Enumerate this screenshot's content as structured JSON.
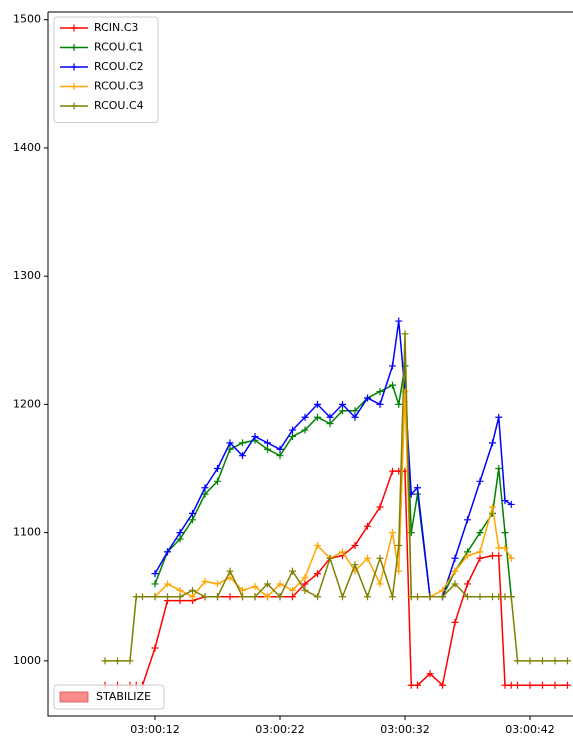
{
  "chart_data": {
    "type": "line",
    "x": [
      8,
      9,
      10,
      10.5,
      11,
      12,
      13,
      14,
      15,
      16,
      17,
      18,
      19,
      20,
      21,
      22,
      23,
      24,
      25,
      26,
      27,
      28,
      29,
      30,
      31,
      31.5,
      32,
      32.5,
      33,
      34,
      35,
      36,
      37,
      38,
      39,
      39.5,
      40,
      40.5,
      41,
      42,
      43,
      44,
      45
    ],
    "series": [
      {
        "name": "RCIN.C3",
        "color": "#ff0000",
        "values": [
          981,
          981,
          981,
          981,
          981,
          1010,
          1047,
          1047,
          1047,
          1050,
          1050,
          1050,
          1050,
          1050,
          1050,
          1050,
          1050,
          1060,
          1068,
          1080,
          1082,
          1090,
          1105,
          1120,
          1148,
          1148,
          1148,
          981,
          981,
          990,
          981,
          1030,
          1060,
          1080,
          1082,
          1082,
          981,
          981,
          981,
          981,
          981,
          981,
          981
        ]
      },
      {
        "name": "RCOU.C1",
        "color": "#008000",
        "values": [
          null,
          null,
          null,
          null,
          null,
          1060,
          1085,
          1095,
          1110,
          1130,
          1140,
          1165,
          1170,
          1172,
          1165,
          1160,
          1175,
          1180,
          1190,
          1185,
          1195,
          1195,
          1205,
          1210,
          1215,
          1200,
          1230,
          1100,
          1130,
          1050,
          1050,
          1070,
          1085,
          1100,
          1115,
          1150,
          1100,
          1050,
          null,
          null,
          null,
          null,
          null
        ]
      },
      {
        "name": "RCOU.C2",
        "color": "#0000ff",
        "values": [
          null,
          null,
          null,
          null,
          null,
          1068,
          1085,
          1100,
          1115,
          1135,
          1150,
          1170,
          1160,
          1175,
          1170,
          1165,
          1180,
          1190,
          1200,
          1190,
          1200,
          1190,
          1205,
          1200,
          1230,
          1265,
          1210,
          1130,
          1135,
          1050,
          1050,
          1080,
          1110,
          1140,
          1170,
          1190,
          1125,
          1122,
          null,
          null,
          null,
          null,
          null
        ]
      },
      {
        "name": "RCOU.C3",
        "color": "#ffa500",
        "values": [
          null,
          null,
          null,
          null,
          null,
          1050,
          1060,
          1055,
          1050,
          1062,
          1060,
          1065,
          1055,
          1058,
          1050,
          1060,
          1055,
          1065,
          1090,
          1080,
          1085,
          1070,
          1080,
          1060,
          1100,
          1070,
          1210,
          1050,
          1050,
          1050,
          1055,
          1070,
          1082,
          1085,
          1120,
          1088,
          1088,
          1080,
          null,
          null,
          null,
          null,
          null
        ]
      },
      {
        "name": "RCOU.C4",
        "color": "#808000",
        "values": [
          1000,
          1000,
          1000,
          1050,
          1050,
          1050,
          1050,
          1050,
          1055,
          1050,
          1050,
          1070,
          1050,
          1050,
          1060,
          1050,
          1070,
          1055,
          1050,
          1080,
          1050,
          1075,
          1050,
          1080,
          1050,
          1090,
          1255,
          1050,
          1050,
          1050,
          1050,
          1060,
          1050,
          1050,
          1050,
          1050,
          1050,
          1050,
          1000,
          1000,
          1000,
          1000,
          1000
        ]
      }
    ],
    "xlim": [
      3.44,
      45.44
    ],
    "xticks": [
      {
        "value": 12,
        "label": "03:00:12"
      },
      {
        "value": 22,
        "label": "03:00:22"
      },
      {
        "value": 32,
        "label": "03:00:32"
      },
      {
        "value": 42,
        "label": "03:00:42"
      }
    ],
    "ylim": [
      957,
      1506
    ],
    "yticks": [
      1000,
      1100,
      1200,
      1300,
      1400,
      1500
    ],
    "legend": "upper left",
    "mode_legend": {
      "label": "STABILIZE",
      "color": "#f88c8c"
    }
  }
}
